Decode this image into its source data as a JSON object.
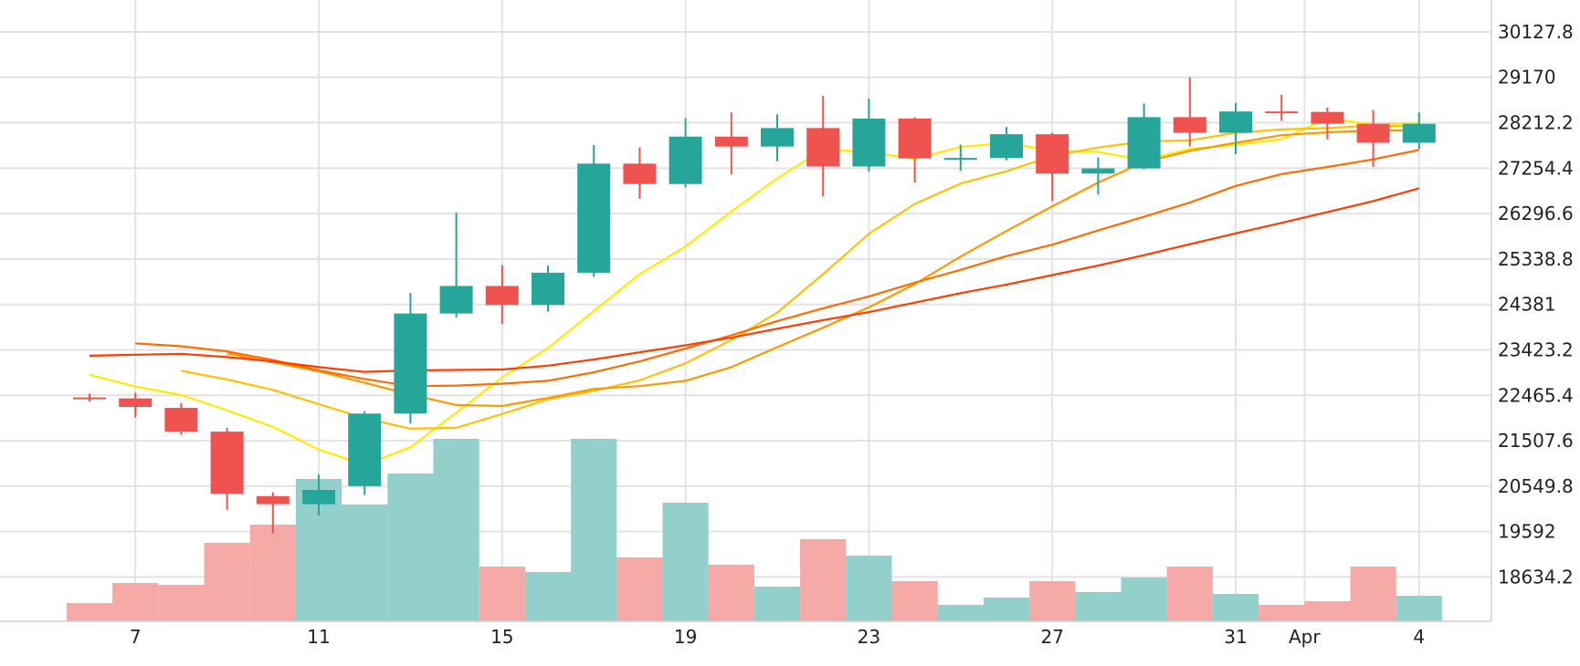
{
  "chart_data": {
    "type": "candlestick",
    "x_ticks": [
      "7",
      "11",
      "15",
      "19",
      "23",
      "27",
      "31",
      "Apr",
      "4"
    ],
    "y_ticks": [
      "30127.8",
      "29170",
      "28212.2",
      "27254.4",
      "26296.6",
      "25338.8",
      "24381",
      "23423.2",
      "22465.4",
      "21507.6",
      "20549.8",
      "19592",
      "18634.2"
    ],
    "ylim": [
      17700,
      30800
    ],
    "grid": true,
    "colors": {
      "up": "#26a69a",
      "down": "#ef5350",
      "up_volume": "#93cfcb",
      "down_volume": "#f5aaa8",
      "grid": "#e3e3e3"
    },
    "candles": [
      {
        "date": "2023-03-06",
        "open": 22420,
        "high": 22500,
        "low": 22330,
        "close": 22400
      },
      {
        "date": "2023-03-07",
        "open": 22400,
        "high": 22520,
        "low": 22000,
        "close": 22220
      },
      {
        "date": "2023-03-08",
        "open": 22200,
        "high": 22300,
        "low": 21630,
        "close": 21700
      },
      {
        "date": "2023-03-09",
        "open": 21700,
        "high": 21780,
        "low": 20050,
        "close": 20390
      },
      {
        "date": "2023-03-10",
        "open": 20340,
        "high": 20420,
        "low": 19550,
        "close": 20170
      },
      {
        "date": "2023-03-11",
        "open": 20170,
        "high": 20800,
        "low": 19930,
        "close": 20470
      },
      {
        "date": "2023-03-12",
        "open": 20550,
        "high": 22130,
        "low": 20360,
        "close": 22080
      },
      {
        "date": "2023-03-13",
        "open": 22080,
        "high": 24620,
        "low": 21870,
        "close": 24190
      },
      {
        "date": "2023-03-14",
        "open": 24190,
        "high": 26320,
        "low": 24110,
        "close": 24770
      },
      {
        "date": "2023-03-15",
        "open": 24770,
        "high": 25210,
        "low": 23970,
        "close": 24370
      },
      {
        "date": "2023-03-16",
        "open": 24370,
        "high": 25200,
        "low": 24230,
        "close": 25050
      },
      {
        "date": "2023-03-17",
        "open": 25050,
        "high": 27740,
        "low": 24960,
        "close": 27350
      },
      {
        "date": "2023-03-18",
        "open": 27350,
        "high": 27690,
        "low": 26610,
        "close": 26920
      },
      {
        "date": "2023-03-19",
        "open": 26920,
        "high": 28310,
        "low": 26850,
        "close": 27920
      },
      {
        "date": "2023-03-20",
        "open": 27920,
        "high": 28430,
        "low": 27120,
        "close": 27710
      },
      {
        "date": "2023-03-21",
        "open": 27710,
        "high": 28390,
        "low": 27400,
        "close": 28100
      },
      {
        "date": "2023-03-22",
        "open": 28100,
        "high": 28780,
        "low": 26660,
        "close": 27290
      },
      {
        "date": "2023-03-23",
        "open": 27290,
        "high": 28720,
        "low": 27180,
        "close": 28300
      },
      {
        "date": "2023-03-24",
        "open": 28300,
        "high": 28330,
        "low": 26950,
        "close": 27460
      },
      {
        "date": "2023-03-25",
        "open": 27460,
        "high": 27750,
        "low": 27200,
        "close": 27470
      },
      {
        "date": "2023-03-26",
        "open": 27470,
        "high": 28120,
        "low": 27420,
        "close": 27970
      },
      {
        "date": "2023-03-27",
        "open": 27970,
        "high": 28000,
        "low": 26560,
        "close": 27140
      },
      {
        "date": "2023-03-28",
        "open": 27140,
        "high": 27480,
        "low": 26700,
        "close": 27250
      },
      {
        "date": "2023-03-29",
        "open": 27250,
        "high": 28620,
        "low": 27230,
        "close": 28330
      },
      {
        "date": "2023-03-30",
        "open": 28330,
        "high": 29170,
        "low": 27710,
        "close": 28000
      },
      {
        "date": "2023-03-31",
        "open": 28000,
        "high": 28630,
        "low": 27550,
        "close": 28450
      },
      {
        "date": "2023-04-01",
        "open": 28450,
        "high": 28800,
        "low": 28250,
        "close": 28440
      },
      {
        "date": "2023-04-02",
        "open": 28440,
        "high": 28530,
        "low": 27860,
        "close": 28190
      },
      {
        "date": "2023-04-03",
        "open": 28190,
        "high": 28480,
        "low": 27280,
        "close": 27790
      },
      {
        "date": "2023-04-04",
        "open": 27790,
        "high": 28430,
        "low": 27660,
        "close": 28190
      }
    ],
    "volume_relative": [
      0.1,
      0.21,
      0.2,
      0.43,
      0.53,
      0.78,
      0.64,
      0.81,
      1.0,
      0.3,
      0.27,
      1.0,
      0.35,
      0.65,
      0.31,
      0.19,
      0.45,
      0.36,
      0.22,
      0.09,
      0.13,
      0.22,
      0.16,
      0.24,
      0.3,
      0.15,
      0.09,
      0.11,
      0.3,
      0.14
    ],
    "moving_averages": [
      {
        "color": "#ffea00",
        "values": [
          22900,
          22650,
          22470,
          22150,
          21800,
          21320,
          21000,
          21370,
          22100,
          22840,
          23460,
          24240,
          25020,
          25600,
          26340,
          27040,
          27650,
          27590,
          27450,
          27700,
          27790,
          27620,
          27600,
          27420,
          27660,
          27750,
          27860,
          28300,
          28180,
          28200
        ]
      },
      {
        "color": "#ffc107",
        "values": [
          22980,
          22800,
          22580,
          22280,
          21980,
          21760,
          21780,
          22070,
          22380,
          22560,
          22780,
          23140,
          23630,
          24210,
          25020,
          25870,
          26500,
          26930,
          27190,
          27510,
          27690,
          27820,
          27840,
          28000,
          28070,
          28100,
          28150,
          28140
        ]
      },
      {
        "color": "#ff9800",
        "values": [
          23350,
          23160,
          22970,
          22730,
          22480,
          22260,
          22240,
          22410,
          22600,
          22660,
          22770,
          23060,
          23480,
          23890,
          24320,
          24810,
          25390,
          25930,
          26450,
          26950,
          27380,
          27620,
          27790,
          27950,
          28010,
          28050,
          28050
        ]
      },
      {
        "color": "#ff6d00",
        "values": [
          23560,
          23500,
          23390,
          23210,
          22990,
          22810,
          22660,
          22670,
          22710,
          22770,
          22950,
          23180,
          23450,
          23730,
          24030,
          24300,
          24550,
          24840,
          25110,
          25400,
          25640,
          25940,
          26230,
          26530,
          26880,
          27130,
          27280,
          27440,
          27640
        ]
      },
      {
        "color": "#ff3d00",
        "values": [
          23300,
          23320,
          23340,
          23270,
          23180,
          23060,
          22960,
          22990,
          23000,
          23010,
          23090,
          23220,
          23370,
          23520,
          23680,
          23870,
          24050,
          24220,
          24420,
          24620,
          24800,
          25000,
          25200,
          25420,
          25650,
          25880,
          26100,
          26330,
          26560,
          26830
        ]
      }
    ]
  }
}
